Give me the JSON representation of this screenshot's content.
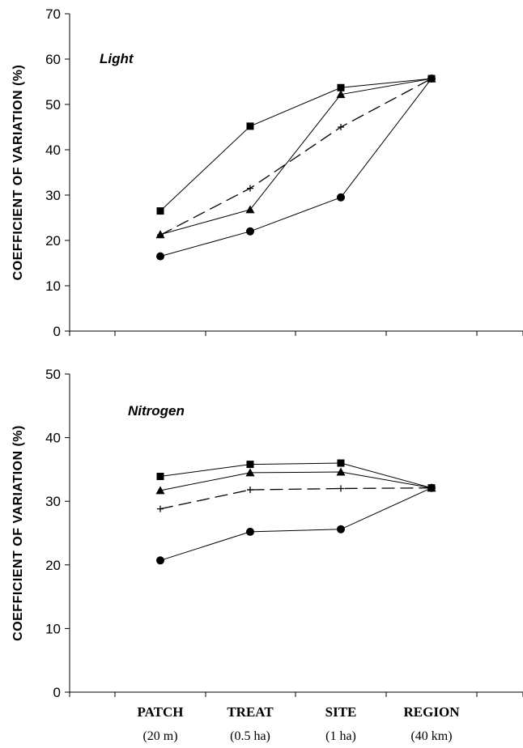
{
  "chart_data": [
    {
      "type": "line",
      "title": "Light",
      "xlabel": "",
      "ylabel": "COEFFICIENT  OF  VARIATION  (%)",
      "ylim": [
        0,
        70
      ],
      "yticks": [
        0,
        10,
        20,
        30,
        40,
        50,
        60,
        70
      ],
      "categories": [
        "PATCH",
        "TREAT",
        "SITE",
        "REGION"
      ],
      "grid": false,
      "legend": "none",
      "series": [
        {
          "marker": "square",
          "line": "solid",
          "values": [
            26.5,
            45.2,
            53.7,
            55.7
          ]
        },
        {
          "marker": "triangle",
          "line": "solid",
          "values": [
            21.3,
            26.8,
            52.2,
            55.7
          ]
        },
        {
          "marker": "plus",
          "line": "dashed",
          "values": [
            21.2,
            31.5,
            45.0,
            55.7
          ]
        },
        {
          "marker": "circle",
          "line": "solid",
          "values": [
            16.5,
            22.0,
            29.5,
            55.7
          ]
        }
      ]
    },
    {
      "type": "line",
      "title": "Nitrogen",
      "xlabel": "",
      "ylabel": "COEFFICIENT  OF  VARIATION  (%)",
      "ylim": [
        0,
        50
      ],
      "yticks": [
        0,
        10,
        20,
        30,
        40,
        50
      ],
      "categories": [
        "PATCH",
        "TREAT",
        "SITE",
        "REGION"
      ],
      "category_sublabels": [
        "(20 m)",
        "(0.5 ha)",
        "(1 ha)",
        "(40 km)"
      ],
      "grid": false,
      "legend": "none",
      "series": [
        {
          "marker": "square",
          "line": "solid",
          "values": [
            33.9,
            35.8,
            36.0,
            32.1
          ]
        },
        {
          "marker": "triangle",
          "line": "solid",
          "values": [
            31.7,
            34.5,
            34.6,
            32.1
          ]
        },
        {
          "marker": "plus",
          "line": "dashed",
          "values": [
            28.8,
            31.8,
            32.0,
            32.1
          ]
        },
        {
          "marker": "circle",
          "line": "solid",
          "values": [
            20.7,
            25.2,
            25.6,
            32.1
          ]
        }
      ]
    }
  ]
}
